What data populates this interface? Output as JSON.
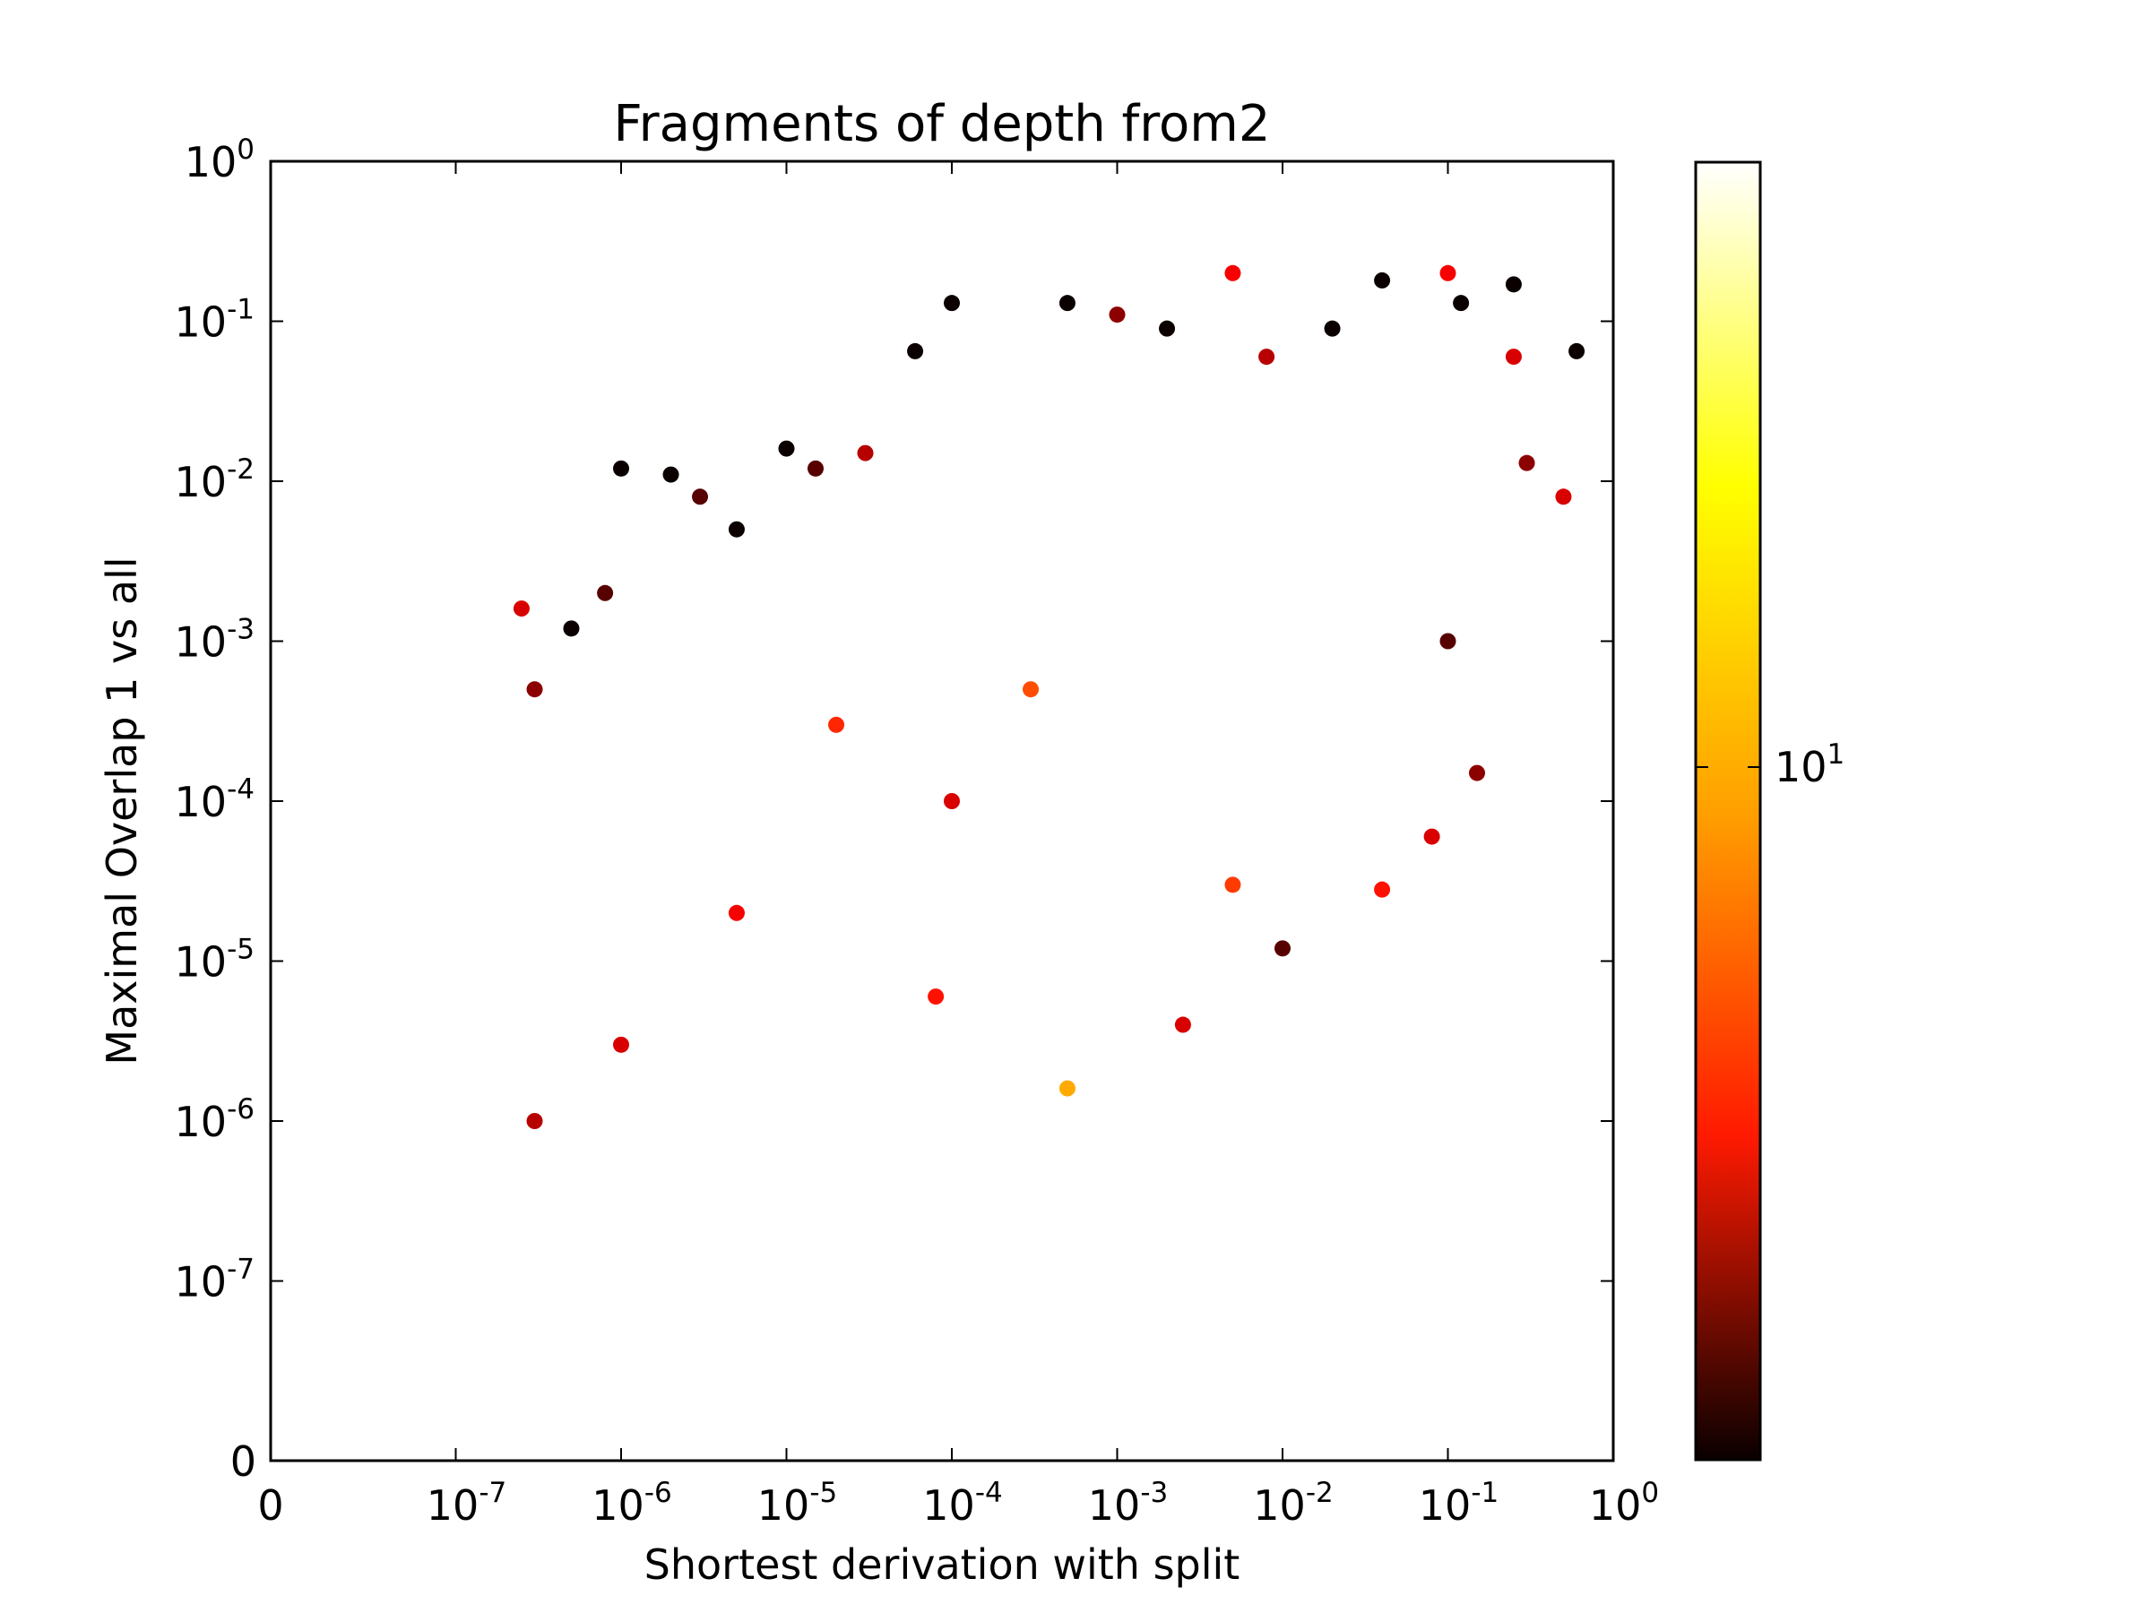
{
  "chart_data": {
    "type": "scatter",
    "title": "Fragments of depth from2",
    "xlabel": "Shortest derivation with split",
    "ylabel": "Maximal Overlap 1 vs all",
    "xscale": "symlog",
    "yscale": "symlog",
    "xlim": [
      0,
      1
    ],
    "ylim": [
      0,
      1
    ],
    "x_ticks": [
      {
        "value": 0,
        "base": "0",
        "exp": ""
      },
      {
        "value": 1e-07,
        "base": "10",
        "exp": "-7"
      },
      {
        "value": 1e-06,
        "base": "10",
        "exp": "-6"
      },
      {
        "value": 1e-05,
        "base": "10",
        "exp": "-5"
      },
      {
        "value": 0.0001,
        "base": "10",
        "exp": "-4"
      },
      {
        "value": 0.001,
        "base": "10",
        "exp": "-3"
      },
      {
        "value": 0.01,
        "base": "10",
        "exp": "-2"
      },
      {
        "value": 0.1,
        "base": "10",
        "exp": "-1"
      },
      {
        "value": 1,
        "base": "10",
        "exp": "0"
      }
    ],
    "y_ticks": [
      {
        "value": 0,
        "base": "0",
        "exp": ""
      },
      {
        "value": 1e-07,
        "base": "10",
        "exp": "-7"
      },
      {
        "value": 1e-06,
        "base": "10",
        "exp": "-6"
      },
      {
        "value": 1e-05,
        "base": "10",
        "exp": "-5"
      },
      {
        "value": 0.0001,
        "base": "10",
        "exp": "-4"
      },
      {
        "value": 0.001,
        "base": "10",
        "exp": "-3"
      },
      {
        "value": 0.01,
        "base": "10",
        "exp": "-2"
      },
      {
        "value": 0.1,
        "base": "10",
        "exp": "-1"
      },
      {
        "value": 1,
        "base": "10",
        "exp": "0"
      }
    ],
    "grid": false,
    "colorbar": {
      "colormap": "hot",
      "scale": "log",
      "tick": {
        "value": 10,
        "base": "10",
        "exp": "1"
      },
      "colors": [
        "#0a0000",
        "#ff1a00",
        "#ffa000",
        "#ffff00",
        "#ffffff"
      ]
    },
    "points": [
      {
        "x": 2.5e-07,
        "y": 0.0016,
        "c": 6
      },
      {
        "x": 3e-07,
        "y": 0.0005,
        "c": 4
      },
      {
        "x": 5e-07,
        "y": 0.0012,
        "c": 2
      },
      {
        "x": 8e-07,
        "y": 0.002,
        "c": 3
      },
      {
        "x": 1e-06,
        "y": 0.012,
        "c": 2
      },
      {
        "x": 2e-06,
        "y": 0.011,
        "c": 2
      },
      {
        "x": 3e-06,
        "y": 0.008,
        "c": 3
      },
      {
        "x": 5e-06,
        "y": 0.005,
        "c": 2
      },
      {
        "x": 1e-05,
        "y": 0.016,
        "c": 2
      },
      {
        "x": 1.5e-05,
        "y": 0.012,
        "c": 3
      },
      {
        "x": 3e-05,
        "y": 0.015,
        "c": 5
      },
      {
        "x": 6e-05,
        "y": 0.065,
        "c": 2
      },
      {
        "x": 0.0001,
        "y": 0.13,
        "c": 2
      },
      {
        "x": 0.0005,
        "y": 0.13,
        "c": 2
      },
      {
        "x": 0.001,
        "y": 0.11,
        "c": 4
      },
      {
        "x": 0.002,
        "y": 0.09,
        "c": 2
      },
      {
        "x": 0.005,
        "y": 0.2,
        "c": 7
      },
      {
        "x": 0.008,
        "y": 0.06,
        "c": 5
      },
      {
        "x": 0.02,
        "y": 0.09,
        "c": 2
      },
      {
        "x": 0.04,
        "y": 0.18,
        "c": 2
      },
      {
        "x": 0.1,
        "y": 0.2,
        "c": 7
      },
      {
        "x": 0.12,
        "y": 0.13,
        "c": 2
      },
      {
        "x": 0.25,
        "y": 0.17,
        "c": 2
      },
      {
        "x": 0.25,
        "y": 0.06,
        "c": 6
      },
      {
        "x": 0.6,
        "y": 0.065,
        "c": 2
      },
      {
        "x": 0.5,
        "y": 0.008,
        "c": 6
      },
      {
        "x": 0.3,
        "y": 0.013,
        "c": 4
      },
      {
        "x": 0.1,
        "y": 0.001,
        "c": 3
      },
      {
        "x": 0.08,
        "y": 6e-05,
        "c": 6
      },
      {
        "x": 0.15,
        "y": 0.00015,
        "c": 4
      },
      {
        "x": 0.04,
        "y": 2.8e-05,
        "c": 8
      },
      {
        "x": 0.01,
        "y": 1.2e-05,
        "c": 3
      },
      {
        "x": 0.005,
        "y": 3e-05,
        "c": 10
      },
      {
        "x": 0.0025,
        "y": 4e-06,
        "c": 6
      },
      {
        "x": 0.0005,
        "y": 1.6e-06,
        "c": 18
      },
      {
        "x": 0.0003,
        "y": 0.0005,
        "c": 11
      },
      {
        "x": 8e-05,
        "y": 6e-06,
        "c": 8
      },
      {
        "x": 0.0001,
        "y": 0.0001,
        "c": 6
      },
      {
        "x": 2e-05,
        "y": 0.0003,
        "c": 9
      },
      {
        "x": 5e-06,
        "y": 2e-05,
        "c": 7
      },
      {
        "x": 1e-06,
        "y": 3e-06,
        "c": 6
      },
      {
        "x": 3e-07,
        "y": 1e-06,
        "c": 5
      }
    ]
  }
}
